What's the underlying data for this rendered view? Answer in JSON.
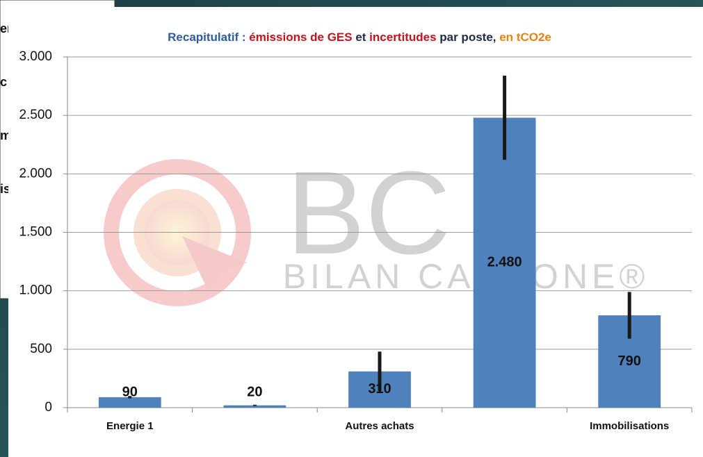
{
  "chart_data": {
    "type": "bar",
    "title": [
      {
        "text": "Recapitulatif : ",
        "color": "#2e5c9a"
      },
      {
        "text": "émissions de GES",
        "color": "#c0141c"
      },
      {
        "text": " et ",
        "color": "#1f2a44"
      },
      {
        "text": "incertitudes",
        "color": "#c0141c"
      },
      {
        "text": " par poste, ",
        "color": "#1f2a44"
      },
      {
        "text": "en tCO2e",
        "color": "#e8820c"
      }
    ],
    "categories": [
      "Energie 1",
      null,
      "Autres achats",
      null,
      "Immobilisations"
    ],
    "values": [
      90,
      20,
      310,
      2480,
      790
    ],
    "value_labels": [
      "90",
      "20",
      "310",
      "2.480",
      "790"
    ],
    "errors": [
      10,
      5,
      170,
      360,
      200
    ],
    "color": "#4f81bd",
    "error_color": "#1a1a1a",
    "ylim": [
      0,
      3000
    ],
    "yticks": [
      0,
      500,
      {
        "value": 1000,
        "label": "1.000"
      },
      {
        "value": 1500,
        "label": "1.500"
      },
      {
        "value": 2000,
        "label": "2.000"
      },
      {
        "value": 2500,
        "label": "2.500"
      },
      {
        "value": 3000,
        "label": "3.000"
      }
    ],
    "grid": true,
    "watermark": {
      "letters": "BC",
      "text": "BILAN CARBONE®"
    },
    "background_fragments": [
      "er",
      "c",
      "m",
      "is"
    ]
  }
}
